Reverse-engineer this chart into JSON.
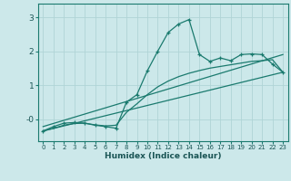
{
  "xlabel": "Humidex (Indice chaleur)",
  "bg_color": "#cce8ea",
  "grid_color": "#b0d4d6",
  "line_color": "#1a7a6e",
  "xlim": [
    -0.5,
    23.5
  ],
  "ylim": [
    -0.65,
    3.4
  ],
  "xticks": [
    0,
    1,
    2,
    3,
    4,
    5,
    6,
    7,
    8,
    9,
    10,
    11,
    12,
    13,
    14,
    15,
    16,
    17,
    18,
    19,
    20,
    21,
    22,
    23
  ],
  "yticks": [
    0,
    1,
    2,
    3
  ],
  "ytick_labels": [
    "-0",
    "1",
    "2",
    "3"
  ],
  "curve_x": [
    0,
    1,
    2,
    3,
    4,
    5,
    6,
    7,
    8,
    9,
    10,
    11,
    12,
    13,
    14,
    15,
    16,
    17,
    18,
    19,
    20,
    21,
    22,
    23
  ],
  "curve_y": [
    -0.35,
    -0.22,
    -0.12,
    -0.1,
    -0.12,
    -0.18,
    -0.22,
    -0.27,
    0.5,
    0.72,
    1.42,
    2.0,
    2.55,
    2.8,
    2.93,
    1.9,
    1.7,
    1.8,
    1.72,
    1.9,
    1.92,
    1.9,
    1.62,
    1.38
  ],
  "line1_x": [
    0,
    23
  ],
  "line1_y": [
    -0.35,
    1.38
  ],
  "line2_x": [
    0,
    23
  ],
  "line2_y": [
    -0.22,
    1.9
  ],
  "curve2_x": [
    0,
    1,
    2,
    3,
    4,
    5,
    6,
    7,
    8,
    9,
    10,
    11,
    12,
    13,
    14,
    15,
    16,
    17,
    18,
    19,
    20,
    21,
    22,
    23
  ],
  "curve2_y": [
    -0.35,
    -0.27,
    -0.18,
    -0.13,
    -0.12,
    -0.17,
    -0.2,
    -0.18,
    0.2,
    0.45,
    0.72,
    0.95,
    1.12,
    1.25,
    1.35,
    1.43,
    1.5,
    1.55,
    1.6,
    1.65,
    1.7,
    1.72,
    1.75,
    1.38
  ]
}
